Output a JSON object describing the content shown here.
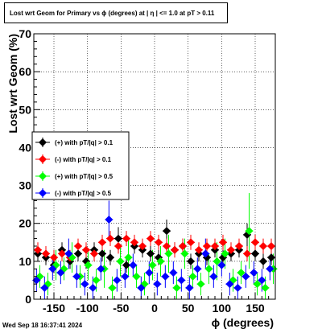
{
  "title": "Lost wrt Geom for Primary vs ϕ (degrees) at |  η | <= 1.0 at pT > 0.11",
  "timestamp": "Wed Sep 18 16:37:41 2024",
  "chart_data": {
    "type": "scatter",
    "xlabel": "ϕ (degrees)",
    "ylabel": "Lost wrt Geom (%)",
    "xlim": [
      -180,
      180
    ],
    "ylim": [
      0,
      70
    ],
    "xticks": [
      "-150",
      "-100",
      "-50",
      "0",
      "50",
      "100",
      "150"
    ],
    "yticks": [
      "0",
      "10",
      "20",
      "30",
      "40",
      "50",
      "60",
      "70"
    ],
    "grid": true,
    "legend_position": "left-middle",
    "series": [
      {
        "name": "(+) with pT/|q| > 0.1",
        "color": "#000000",
        "x": [
          -174,
          -162,
          -150,
          -138,
          -126,
          -114,
          -102,
          -90,
          -78,
          -66,
          -54,
          -42,
          -30,
          -18,
          -6,
          6,
          18,
          30,
          42,
          54,
          66,
          78,
          90,
          102,
          114,
          126,
          138,
          150,
          162,
          174
        ],
        "y": [
          12,
          11,
          9,
          13,
          10,
          12,
          10,
          13,
          12,
          11,
          16,
          9,
          14,
          13,
          12,
          11,
          18,
          13,
          14,
          10,
          12,
          11,
          13,
          11,
          12,
          13,
          17,
          12,
          10,
          11
        ],
        "err": [
          2,
          2,
          2,
          2,
          2,
          2,
          2,
          2,
          2,
          2,
          3,
          2,
          2,
          2,
          2,
          2,
          3,
          2,
          2,
          2,
          2,
          2,
          2,
          2,
          2,
          2,
          3,
          2,
          2,
          2
        ]
      },
      {
        "name": "(-) with pT/|q| > 0.1",
        "color": "#ff0000",
        "x": [
          -174,
          -162,
          -150,
          -138,
          -126,
          -114,
          -102,
          -90,
          -78,
          -66,
          -54,
          -42,
          -30,
          -18,
          -6,
          6,
          18,
          30,
          42,
          54,
          66,
          78,
          90,
          102,
          114,
          126,
          138,
          150,
          162,
          174
        ],
        "y": [
          13,
          12,
          11,
          12,
          11,
          14,
          13,
          12,
          15,
          16,
          14,
          16,
          15,
          14,
          16,
          15,
          14,
          13,
          14,
          15,
          13,
          14,
          14,
          15,
          13,
          14,
          12,
          15,
          14,
          14
        ],
        "err": [
          2,
          2,
          2,
          2,
          2,
          2,
          2,
          2,
          2,
          2,
          2,
          2,
          2,
          2,
          2,
          2,
          2,
          2,
          2,
          2,
          2,
          2,
          2,
          2,
          2,
          2,
          2,
          2,
          2,
          2
        ]
      },
      {
        "name": "(+) with pT/|q| > 0.5",
        "color": "#00ff00",
        "x": [
          -171,
          -159,
          -147,
          -135,
          -123,
          -111,
          -99,
          -87,
          -75,
          -63,
          -51,
          -39,
          -27,
          -15,
          -3,
          9,
          21,
          33,
          45,
          57,
          69,
          81,
          93,
          105,
          117,
          129,
          141,
          153,
          165,
          177
        ],
        "y": [
          6,
          4,
          9,
          8,
          11,
          6,
          9,
          5,
          8,
          3,
          10,
          11,
          6,
          4,
          9,
          10,
          12,
          3,
          12,
          6,
          4,
          8,
          10,
          12,
          5,
          7,
          18,
          4,
          3,
          8
        ],
        "err": [
          3,
          3,
          4,
          3,
          4,
          3,
          4,
          3,
          5,
          3,
          4,
          5,
          3,
          3,
          4,
          4,
          5,
          3,
          4,
          3,
          3,
          4,
          5,
          4,
          3,
          3,
          10,
          3,
          3,
          4
        ]
      },
      {
        "name": "(-) with pT/|q| > 0.5",
        "color": "#0000ff",
        "x": [
          -176,
          -164,
          -152,
          -140,
          -128,
          -116,
          -104,
          -92,
          -80,
          -68,
          -56,
          -44,
          -32,
          -20,
          -8,
          4,
          16,
          28,
          40,
          52,
          64,
          76,
          88,
          100,
          112,
          124,
          136,
          148,
          160,
          172
        ],
        "y": [
          5,
          3,
          8,
          7,
          12,
          6,
          4,
          3,
          8,
          21,
          5,
          6,
          9,
          3,
          7,
          4,
          6,
          7,
          5,
          3,
          8,
          12,
          6,
          9,
          4,
          3,
          6,
          7,
          5,
          8
        ],
        "err": [
          3,
          3,
          3,
          3,
          4,
          3,
          3,
          3,
          3,
          5,
          3,
          3,
          3,
          3,
          3,
          3,
          3,
          3,
          3,
          3,
          3,
          4,
          3,
          3,
          3,
          3,
          3,
          3,
          3,
          3
        ]
      }
    ]
  }
}
